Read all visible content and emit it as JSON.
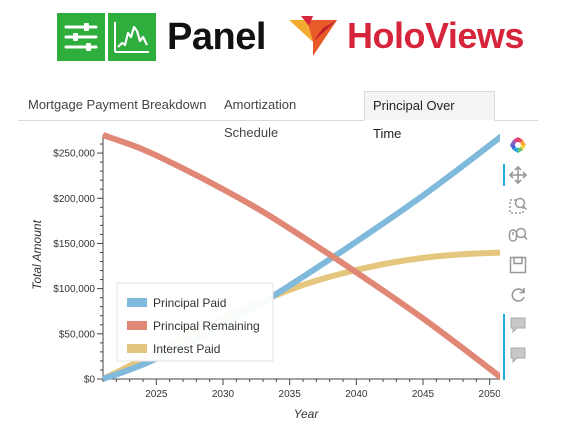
{
  "header": {
    "panel_logo_text": "Panel",
    "holoviews_logo_text": "HoloViews"
  },
  "tabs": [
    {
      "label": "Mortgage Payment Breakdown",
      "active": false
    },
    {
      "label": "Amortization Schedule",
      "active": false
    },
    {
      "label": "Principal Over Time",
      "active": true
    }
  ],
  "toolbar": {
    "icons": [
      "bokeh-logo-icon",
      "pan-icon",
      "box-zoom-icon",
      "wheel-zoom-icon",
      "save-icon",
      "reset-icon",
      "hover-icon",
      "hover-icon"
    ]
  },
  "colors": {
    "principal_paid": "#7fb9db",
    "principal_remaining": "#e08775",
    "interest_paid": "#e5c67e",
    "brand_green": "#2eae3c",
    "brand_red": "#d6253b",
    "accent_blue": "#26aae1"
  },
  "chart_data": {
    "type": "line",
    "title": "",
    "xlabel": "Year",
    "ylabel": "Total Amount",
    "xlim": [
      2021,
      2051
    ],
    "ylim": [
      0,
      270000
    ],
    "x_ticks": [
      2025,
      2030,
      2035,
      2040,
      2045,
      2050
    ],
    "y_ticks": [
      0,
      50000,
      100000,
      150000,
      200000,
      250000
    ],
    "y_tick_labels": [
      "$0",
      "$50,000",
      "$100,000",
      "$150,000",
      "$200,000",
      "$250,000"
    ],
    "grid": false,
    "legend": "bottom-left",
    "x": [
      2021,
      2024,
      2027,
      2030,
      2033,
      2036,
      2039,
      2042,
      2045,
      2048,
      2051
    ],
    "series": [
      {
        "name": "Principal Paid",
        "color": "#7fb9db",
        "values": [
          0,
          16000,
          37000,
          60000,
          85000,
          113000,
          142000,
          172000,
          203000,
          236000,
          270000
        ]
      },
      {
        "name": "Principal Remaining",
        "color": "#e08775",
        "values": [
          270000,
          254000,
          233000,
          210000,
          185000,
          157000,
          128000,
          98000,
          67000,
          34000,
          0
        ]
      },
      {
        "name": "Interest Paid",
        "color": "#e5c67e",
        "values": [
          0,
          22000,
          46000,
          68000,
          87000,
          104000,
          117000,
          127000,
          134000,
          138000,
          140000
        ]
      }
    ]
  }
}
